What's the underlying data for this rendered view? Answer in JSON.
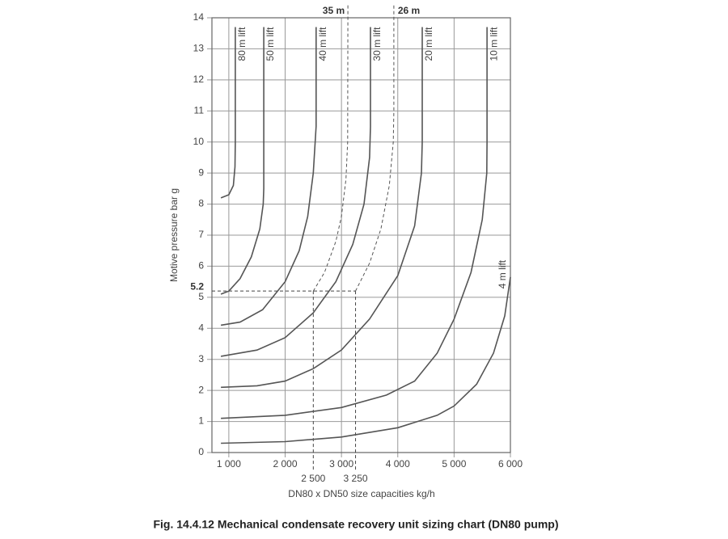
{
  "chart_data": {
    "type": "line",
    "title": "Fig. 14.4.12 Mechanical condensate recovery unit sizing chart (DN80 pump)",
    "x_label": "DN80 x DN50 size capacities kg/h",
    "y_label": "Motive pressure bar g",
    "xlim": [
      700,
      6000
    ],
    "ylim": [
      0,
      14
    ],
    "xticks": [
      {
        "value": 1000,
        "label": "1 000"
      },
      {
        "value": 2000,
        "label": "2 000"
      },
      {
        "value": 3000,
        "label": "3 000"
      },
      {
        "value": 4000,
        "label": "4 000"
      },
      {
        "value": 5000,
        "label": "5 000"
      },
      {
        "value": 6000,
        "label": "6 000"
      }
    ],
    "yticks": [
      0,
      1,
      2,
      3,
      4,
      5,
      6,
      7,
      8,
      9,
      10,
      11,
      12,
      13,
      14
    ],
    "grid": true,
    "guides": {
      "y": 5.2,
      "x": [
        {
          "value": 2500,
          "label": "2 500"
        },
        {
          "value": 3250,
          "label": "3 250"
        }
      ]
    },
    "series": [
      {
        "name": "80 m lift",
        "color": "#555555",
        "x": [
          860,
          1000,
          1080,
          1110,
          1115,
          1115
        ],
        "values": [
          8.2,
          8.3,
          8.6,
          9.2,
          10,
          13.7
        ]
      },
      {
        "name": "50 m lift",
        "color": "#555555",
        "x": [
          860,
          1000,
          1200,
          1400,
          1550,
          1610,
          1620,
          1620
        ],
        "values": [
          5.1,
          5.2,
          5.6,
          6.3,
          7.2,
          8,
          8.5,
          13.7
        ]
      },
      {
        "name": "40 m lift",
        "color": "#555555",
        "x": [
          860,
          1200,
          1600,
          2000,
          2250,
          2400,
          2500,
          2550,
          2550
        ],
        "values": [
          4.1,
          4.2,
          4.6,
          5.5,
          6.5,
          7.6,
          9,
          10.5,
          13.7
        ]
      },
      {
        "name": "30 m lift",
        "color": "#555555",
        "x": [
          860,
          1500,
          2000,
          2500,
          2900,
          3200,
          3400,
          3500,
          3515,
          3515
        ],
        "values": [
          3.1,
          3.3,
          3.7,
          4.5,
          5.5,
          6.7,
          8,
          9.5,
          10.5,
          13.7
        ]
      },
      {
        "name": "20 m lift",
        "color": "#555555",
        "x": [
          860,
          1500,
          2000,
          2500,
          3000,
          3500,
          4000,
          4300,
          4420,
          4435,
          4435
        ],
        "values": [
          2.1,
          2.15,
          2.3,
          2.7,
          3.3,
          4.3,
          5.7,
          7.3,
          9,
          10,
          13.7
        ]
      },
      {
        "name": "10 m lift",
        "color": "#555555",
        "x": [
          860,
          2000,
          3000,
          3800,
          4300,
          4700,
          5000,
          5300,
          5500,
          5580,
          5585,
          5585
        ],
        "values": [
          1.1,
          1.2,
          1.45,
          1.85,
          2.3,
          3.2,
          4.3,
          5.8,
          7.5,
          9,
          10,
          13.7
        ]
      },
      {
        "name": "4 m lift",
        "color": "#555555",
        "x": [
          860,
          2000,
          3000,
          4000,
          4700,
          5000,
          5400,
          5700,
          5900,
          6000
        ],
        "values": [
          0.3,
          0.35,
          0.5,
          0.8,
          1.2,
          1.5,
          2.2,
          3.2,
          4.4,
          5.65
        ]
      },
      {
        "name": "35 m",
        "color": "#555555",
        "dashed": true,
        "x": [
          2500,
          2700,
          2900,
          3000,
          3080,
          3110,
          3115
        ],
        "values": [
          5.2,
          5.8,
          6.8,
          7.6,
          8.8,
          10,
          14.4
        ]
      },
      {
        "name": "26 m",
        "color": "#555555",
        "dashed": true,
        "x": [
          3250,
          3500,
          3700,
          3850,
          3920,
          3930,
          3930
        ],
        "values": [
          5.2,
          6.1,
          7.2,
          8.6,
          10,
          11,
          14.4
        ]
      }
    ]
  }
}
